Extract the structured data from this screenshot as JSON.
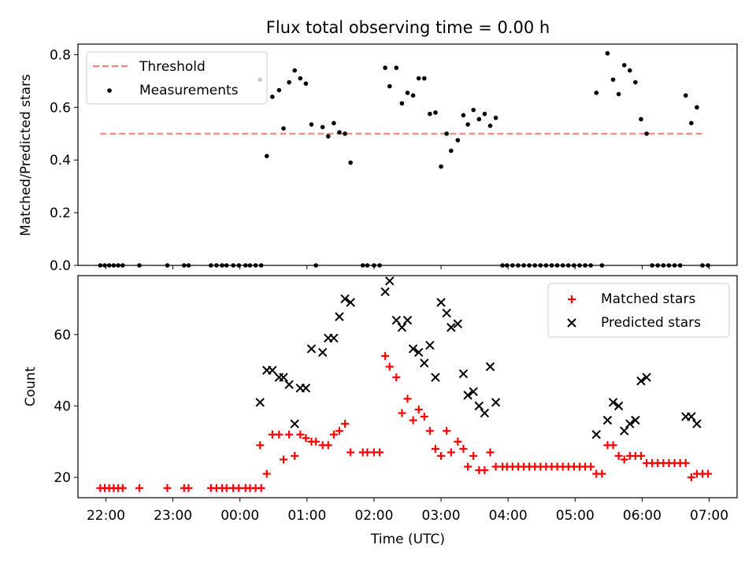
{
  "title": "Flux total observing time = 0.00 h",
  "colors": {
    "threshold": "#ff7b7b",
    "measurements": "#000000",
    "matched": "#ff0000",
    "predicted": "#000000"
  },
  "chart_data": [
    {
      "type": "scatter",
      "panel": "top",
      "ylabel": "Matched/Predicted stars",
      "xlabel": "",
      "ylim": [
        0,
        0.84
      ],
      "yticks": [
        "0.0",
        "0.2",
        "0.4",
        "0.6",
        "0.8"
      ],
      "xlim": [
        "21:35",
        "07:25"
      ],
      "xticks": [
        "22:00",
        "23:00",
        "00:00",
        "01:00",
        "02:00",
        "03:00",
        "04:00",
        "05:00",
        "06:00",
        "07:00"
      ],
      "legend_position": "upper-left",
      "threshold": {
        "name": "Threshold",
        "value": 0.5,
        "x_range": [
          "21:55",
          "06:55"
        ]
      },
      "series": [
        {
          "name": "Measurements",
          "points": [
            [
              "21:55",
              0
            ],
            [
              "21:59",
              0
            ],
            [
              "22:03",
              0
            ],
            [
              "22:07",
              0
            ],
            [
              "22:11",
              0
            ],
            [
              "22:15",
              0
            ],
            [
              "22:30",
              0
            ],
            [
              "22:55",
              0
            ],
            [
              "23:10",
              0
            ],
            [
              "23:14",
              0
            ],
            [
              "23:34",
              0
            ],
            [
              "23:39",
              0
            ],
            [
              "23:44",
              0
            ],
            [
              "23:48",
              0
            ],
            [
              "23:54",
              0
            ],
            [
              "23:59",
              0
            ],
            [
              "00:05",
              0
            ],
            [
              "00:09",
              0
            ],
            [
              "00:14",
              0
            ],
            [
              "00:19",
              0
            ],
            [
              "00:18",
              0.705
            ],
            [
              "00:24",
              0.415
            ],
            [
              "00:29",
              0.64
            ],
            [
              "00:35",
              0.665
            ],
            [
              "00:39",
              0.52
            ],
            [
              "00:44",
              0.695
            ],
            [
              "00:49",
              0.74
            ],
            [
              "00:54",
              0.71
            ],
            [
              "00:59",
              0.69
            ],
            [
              "01:04",
              0.535
            ],
            [
              "01:08",
              0
            ],
            [
              "01:14",
              0.525
            ],
            [
              "01:19",
              0.49
            ],
            [
              "01:24",
              0.54
            ],
            [
              "01:29",
              0.505
            ],
            [
              "01:34",
              0.5
            ],
            [
              "01:39",
              0.39
            ],
            [
              "01:50",
              0
            ],
            [
              "01:54",
              0
            ],
            [
              "02:00",
              0
            ],
            [
              "02:05",
              0
            ],
            [
              "02:10",
              0.75
            ],
            [
              "02:14",
              0.68
            ],
            [
              "02:20",
              0.75
            ],
            [
              "02:25",
              0.615
            ],
            [
              "02:30",
              0.655
            ],
            [
              "02:35",
              0.645
            ],
            [
              "02:40",
              0.71
            ],
            [
              "02:45",
              0.71
            ],
            [
              "02:50",
              0.575
            ],
            [
              "02:55",
              0.58
            ],
            [
              "03:00",
              0.375
            ],
            [
              "03:05",
              0.5
            ],
            [
              "03:09",
              0.435
            ],
            [
              "03:15",
              0.475
            ],
            [
              "03:20",
              0.57
            ],
            [
              "03:24",
              0.535
            ],
            [
              "03:29",
              0.59
            ],
            [
              "03:34",
              0.555
            ],
            [
              "03:39",
              0.575
            ],
            [
              "03:44",
              0.53
            ],
            [
              "03:49",
              0.56
            ],
            [
              "03:55",
              0
            ],
            [
              "03:59",
              0
            ],
            [
              "04:04",
              0
            ],
            [
              "04:09",
              0
            ],
            [
              "04:14",
              0
            ],
            [
              "04:19",
              0
            ],
            [
              "04:24",
              0
            ],
            [
              "04:29",
              0
            ],
            [
              "04:34",
              0
            ],
            [
              "04:39",
              0
            ],
            [
              "04:44",
              0
            ],
            [
              "04:49",
              0
            ],
            [
              "04:54",
              0
            ],
            [
              "04:59",
              0
            ],
            [
              "05:04",
              0
            ],
            [
              "05:09",
              0
            ],
            [
              "05:14",
              0
            ],
            [
              "05:24",
              0
            ],
            [
              "05:19",
              0.655
            ],
            [
              "05:29",
              0.805
            ],
            [
              "05:34",
              0.705
            ],
            [
              "05:39",
              0.65
            ],
            [
              "05:44",
              0.76
            ],
            [
              "05:49",
              0.74
            ],
            [
              "05:54",
              0.695
            ],
            [
              "05:59",
              0.555
            ],
            [
              "06:04",
              0.5
            ],
            [
              "06:09",
              0
            ],
            [
              "06:14",
              0
            ],
            [
              "06:19",
              0
            ],
            [
              "06:24",
              0
            ],
            [
              "06:29",
              0
            ],
            [
              "06:34",
              0
            ],
            [
              "06:39",
              0.645
            ],
            [
              "06:44",
              0.54
            ],
            [
              "06:49",
              0.6
            ],
            [
              "06:54",
              0
            ],
            [
              "06:59",
              0
            ]
          ]
        }
      ]
    },
    {
      "type": "scatter",
      "panel": "bottom",
      "xlabel": "Time (UTC)",
      "ylabel": "Count",
      "ylim": [
        14.3,
        76.5
      ],
      "yticks": [
        "20",
        "40",
        "60"
      ],
      "xlim": [
        "21:35",
        "07:25"
      ],
      "xticks": [
        "22:00",
        "23:00",
        "00:00",
        "01:00",
        "02:00",
        "03:00",
        "04:00",
        "05:00",
        "06:00",
        "07:00"
      ],
      "legend_position": "upper-right",
      "series": [
        {
          "name": "Matched stars",
          "points": [
            [
              "21:55",
              17
            ],
            [
              "21:59",
              17
            ],
            [
              "22:03",
              17
            ],
            [
              "22:07",
              17
            ],
            [
              "22:11",
              17
            ],
            [
              "22:15",
              17
            ],
            [
              "22:30",
              17
            ],
            [
              "22:55",
              17
            ],
            [
              "23:10",
              17
            ],
            [
              "23:14",
              17
            ],
            [
              "23:34",
              17
            ],
            [
              "23:39",
              17
            ],
            [
              "23:44",
              17
            ],
            [
              "23:48",
              17
            ],
            [
              "23:54",
              17
            ],
            [
              "23:59",
              17
            ],
            [
              "00:05",
              17
            ],
            [
              "00:09",
              17
            ],
            [
              "00:14",
              17
            ],
            [
              "00:19",
              17
            ],
            [
              "00:18",
              29
            ],
            [
              "00:24",
              21
            ],
            [
              "00:29",
              32
            ],
            [
              "00:35",
              32
            ],
            [
              "00:39",
              25
            ],
            [
              "00:44",
              32
            ],
            [
              "00:49",
              26
            ],
            [
              "00:54",
              32
            ],
            [
              "00:59",
              31
            ],
            [
              "01:04",
              30
            ],
            [
              "01:08",
              30
            ],
            [
              "01:14",
              29
            ],
            [
              "01:19",
              29
            ],
            [
              "01:24",
              32
            ],
            [
              "01:29",
              33
            ],
            [
              "01:34",
              35
            ],
            [
              "01:39",
              27
            ],
            [
              "01:50",
              27
            ],
            [
              "01:54",
              27
            ],
            [
              "02:00",
              27
            ],
            [
              "02:05",
              27
            ],
            [
              "02:10",
              54
            ],
            [
              "02:14",
              51
            ],
            [
              "02:20",
              48
            ],
            [
              "02:25",
              38
            ],
            [
              "02:30",
              42
            ],
            [
              "02:35",
              36
            ],
            [
              "02:40",
              39
            ],
            [
              "02:45",
              37
            ],
            [
              "02:50",
              33
            ],
            [
              "02:55",
              28
            ],
            [
              "03:00",
              26
            ],
            [
              "03:05",
              33
            ],
            [
              "03:09",
              27
            ],
            [
              "03:15",
              30
            ],
            [
              "03:20",
              28
            ],
            [
              "03:24",
              23
            ],
            [
              "03:29",
              26
            ],
            [
              "03:34",
              22
            ],
            [
              "03:39",
              22
            ],
            [
              "03:44",
              27
            ],
            [
              "03:49",
              23
            ],
            [
              "03:55",
              23
            ],
            [
              "03:59",
              23
            ],
            [
              "04:04",
              23
            ],
            [
              "04:09",
              23
            ],
            [
              "04:14",
              23
            ],
            [
              "04:19",
              23
            ],
            [
              "04:24",
              23
            ],
            [
              "04:29",
              23
            ],
            [
              "04:34",
              23
            ],
            [
              "04:39",
              23
            ],
            [
              "04:44",
              23
            ],
            [
              "04:49",
              23
            ],
            [
              "04:54",
              23
            ],
            [
              "04:59",
              23
            ],
            [
              "05:04",
              23
            ],
            [
              "05:09",
              23
            ],
            [
              "05:14",
              23
            ],
            [
              "05:24",
              21
            ],
            [
              "05:19",
              21
            ],
            [
              "05:29",
              29
            ],
            [
              "05:34",
              29
            ],
            [
              "05:39",
              26
            ],
            [
              "05:44",
              25
            ],
            [
              "05:49",
              26
            ],
            [
              "05:54",
              26
            ],
            [
              "05:59",
              26
            ],
            [
              "06:04",
              24
            ],
            [
              "06:09",
              24
            ],
            [
              "06:14",
              24
            ],
            [
              "06:19",
              24
            ],
            [
              "06:24",
              24
            ],
            [
              "06:29",
              24
            ],
            [
              "06:34",
              24
            ],
            [
              "06:39",
              24
            ],
            [
              "06:44",
              20
            ],
            [
              "06:49",
              21
            ],
            [
              "06:54",
              21
            ],
            [
              "06:59",
              21
            ]
          ]
        },
        {
          "name": "Predicted stars",
          "points": [
            [
              "00:18",
              41
            ],
            [
              "00:24",
              50
            ],
            [
              "00:29",
              50
            ],
            [
              "00:35",
              48
            ],
            [
              "00:39",
              48
            ],
            [
              "00:44",
              46
            ],
            [
              "00:49",
              35
            ],
            [
              "00:54",
              45
            ],
            [
              "00:59",
              45
            ],
            [
              "01:04",
              56
            ],
            [
              "01:14",
              55
            ],
            [
              "01:19",
              59
            ],
            [
              "01:24",
              59
            ],
            [
              "01:29",
              65
            ],
            [
              "01:34",
              70
            ],
            [
              "01:39",
              69
            ],
            [
              "02:10",
              72
            ],
            [
              "02:14",
              75
            ],
            [
              "02:20",
              64
            ],
            [
              "02:25",
              62
            ],
            [
              "02:30",
              64
            ],
            [
              "02:35",
              56
            ],
            [
              "02:40",
              55
            ],
            [
              "02:45",
              52
            ],
            [
              "02:50",
              57
            ],
            [
              "02:55",
              48
            ],
            [
              "03:00",
              69
            ],
            [
              "03:05",
              66
            ],
            [
              "03:09",
              62
            ],
            [
              "03:15",
              63
            ],
            [
              "03:20",
              49
            ],
            [
              "03:24",
              43
            ],
            [
              "03:29",
              44
            ],
            [
              "03:34",
              40
            ],
            [
              "03:39",
              38
            ],
            [
              "03:44",
              51
            ],
            [
              "03:49",
              41
            ],
            [
              "05:19",
              32
            ],
            [
              "05:29",
              36
            ],
            [
              "05:34",
              41
            ],
            [
              "05:39",
              40
            ],
            [
              "05:44",
              33
            ],
            [
              "05:49",
              35
            ],
            [
              "05:54",
              36
            ],
            [
              "05:59",
              47
            ],
            [
              "06:04",
              48
            ],
            [
              "06:39",
              37
            ],
            [
              "06:44",
              37
            ],
            [
              "06:49",
              35
            ]
          ]
        }
      ]
    }
  ]
}
